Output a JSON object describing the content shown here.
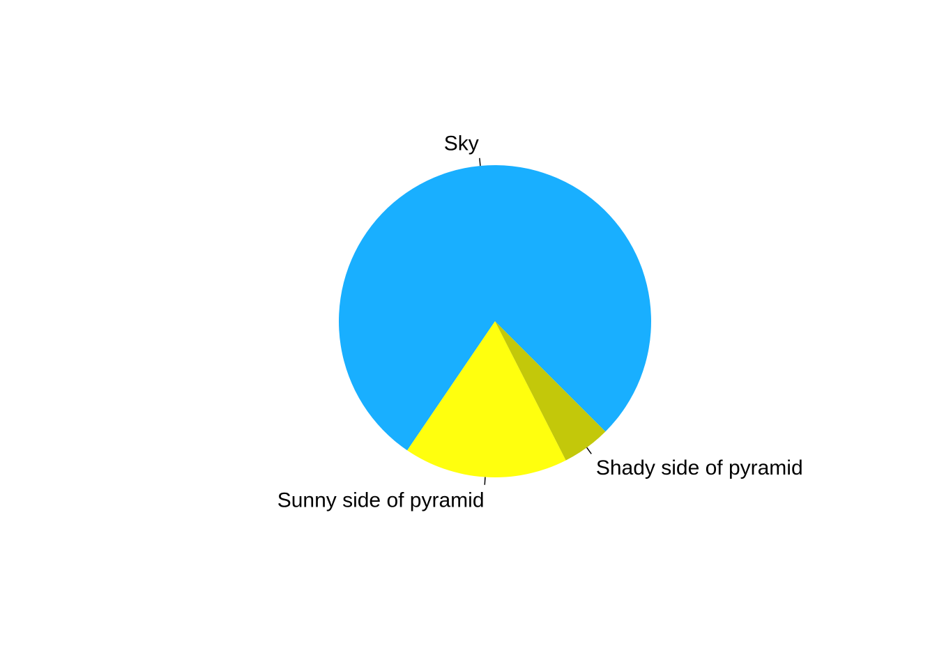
{
  "chart_data": {
    "type": "pie",
    "title": "",
    "slices": [
      {
        "label": "Sky",
        "value": 0.78,
        "color": "#19AFFF"
      },
      {
        "label": "Sunny side of pyramid",
        "value": 0.17,
        "color": "#FFFF0E"
      },
      {
        "label": "Shady side of pyramid",
        "value": 0.05,
        "color": "#C3C80A"
      }
    ],
    "start_angle_deg": 315,
    "direction": "counterclockwise",
    "legend": "none"
  }
}
